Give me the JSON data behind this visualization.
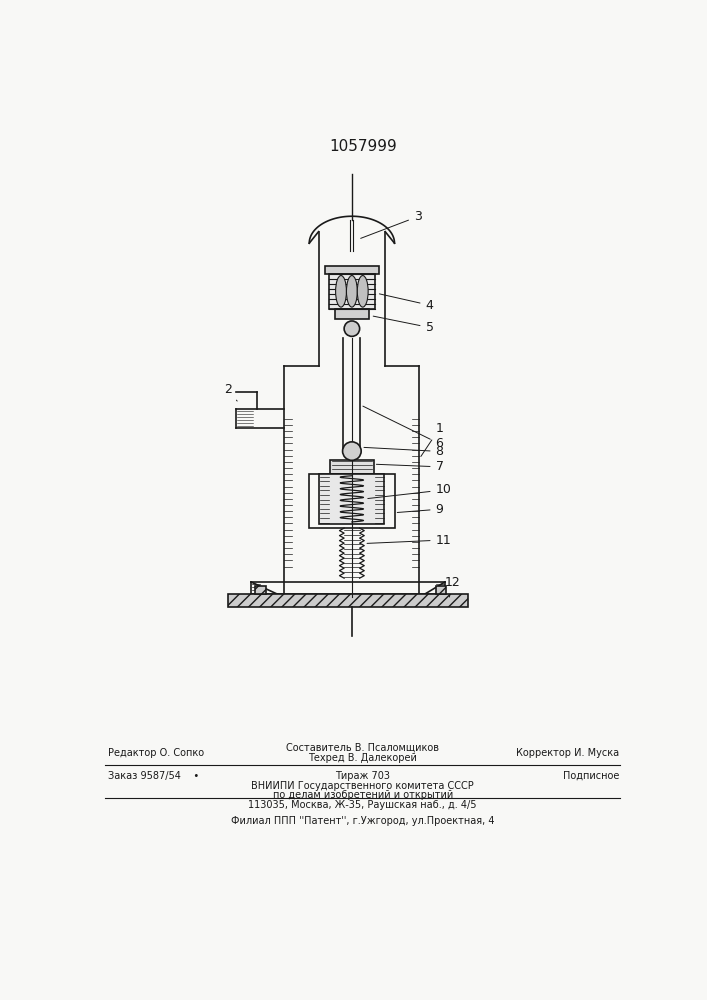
{
  "patent_number": "1057999",
  "bg": "#f8f8f6",
  "lc": "#1a1a1a",
  "footer_line1_left": "Редактор О. Сопко",
  "footer_line1_center1": "Составитель В. Псаломщиков",
  "footer_line1_center2": "Техред В. Далекорей",
  "footer_line1_right": "Корректор И. Муска",
  "footer_line2_left": "Заказ 9587/54    •",
  "footer_line2_center": "Тираж 703",
  "footer_line2_right": "Подписное",
  "footer_line3": "ВНИИПИ Государственного комитета СССР",
  "footer_line4": "по делам изобретений и открытий",
  "footer_line5": "113035, Москва, Ж-35, Раушская наб., д. 4/5",
  "footer_line6": "Филиал ППП ''Патент'', г.Ужгород, ул.Проектная, 4"
}
